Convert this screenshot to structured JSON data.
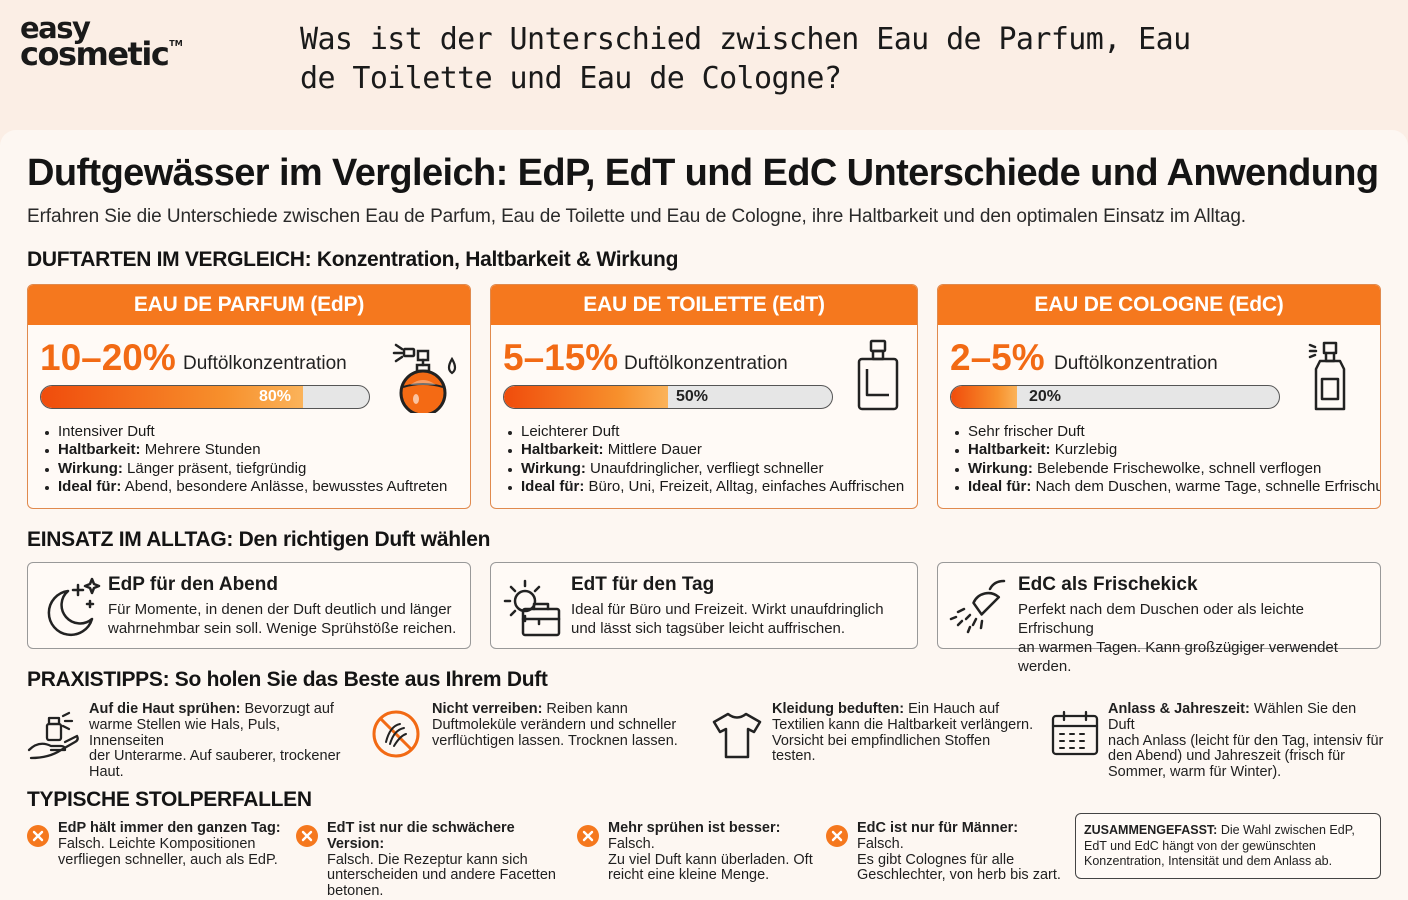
{
  "logo": {
    "line1": "easy",
    "line2": "cosmetic",
    "tm": "TM"
  },
  "question": "Was ist der Unterschied zwischen Eau de Parfum, Eau de Toilette und Eau de Cologne?",
  "title": "Duftgewässer im Vergleich: EdP, EdT und EdC Unterschiede und Anwendung",
  "subtitle": "Erfahren Sie die Unterschiede zwischen Eau de Parfum, Eau de Toilette und Eau de Cologne, ihre Haltbarkeit und den optimalen Einsatz im Alltag.",
  "section1": "DUFTARTEN IM VERGLEICH: Konzentration, Haltbarkeit & Wirkung",
  "section2": "EINSATZ IM ALLTAG: Den richtigen Duft wählen",
  "section3": "PRAXISTIPPS: So holen Sie das Beste aus Ihrem Duft",
  "section4": "TYPISCHE STOLPERFALLEN",
  "types": [
    {
      "title": "EAU DE PARFUM (EdP)",
      "pct": "10–20%",
      "pct_label": "Duftölkonzentration",
      "bar_value": 80,
      "bar_label": "80%",
      "b1": "Intensiver Duft",
      "b2k": "Haltbarkeit:",
      "b2v": " Mehrere Stunden",
      "b3k": "Wirkung:",
      "b3v": " Länger präsent, tiefgründig",
      "b4k": "Ideal für:",
      "b4v": " Abend, besondere Anlässe, bewusstes Auftreten",
      "icon": "perfume-bottle-icon"
    },
    {
      "title": "EAU DE TOILETTE (EdT)",
      "pct": "5–15%",
      "pct_label": "Duftölkonzentration",
      "bar_value": 50,
      "bar_label": "50%",
      "b1": "Leichterer Duft",
      "b2k": "Haltbarkeit:",
      "b2v": " Mittlere Dauer",
      "b3k": "Wirkung:",
      "b3v": " Unaufdringlicher, verfliegt schneller",
      "b4k": "Ideal für:",
      "b4v": " Büro, Uni, Freizeit, Alltag, einfaches Auffrischen",
      "icon": "toilette-bottle-icon"
    },
    {
      "title": "EAU DE COLOGNE (EdC)",
      "pct": "2–5%",
      "pct_label": "Duftölkonzentration",
      "bar_value": 20,
      "bar_label": "20%",
      "b1": "Sehr frischer Duft",
      "b2k": "Haltbarkeit:",
      "b2v": " Kurzlebig",
      "b3k": "Wirkung:",
      "b3v": " Belebende Frischewolke, schnell verflogen",
      "b4k": "Ideal für:",
      "b4v": " Nach dem Duschen, warme Tage, schnelle Erfrischung",
      "icon": "cologne-spray-icon"
    }
  ],
  "usage": [
    {
      "title": "EdP für den Abend",
      "line1": "Für Momente, in denen der Duft deutlich und länger",
      "line2": "wahrnehmbar sein soll. Wenige Sprühstöße reichen.",
      "icon": "moon-stars-icon"
    },
    {
      "title": "EdT für den Tag",
      "line1": "Ideal für Büro und Freizeit. Wirkt unaufdringlich",
      "line2": "und lässt sich tagsüber leicht auffrischen.",
      "icon": "sun-briefcase-icon"
    },
    {
      "title": "EdC als Frischekick",
      "line1": "Perfekt nach dem Duschen oder als leichte Erfrischung",
      "line2": "an warmen Tagen. Kann großzügiger verwendet werden.",
      "icon": "shower-icon"
    }
  ],
  "tips": [
    {
      "bold": "Auf die Haut sprühen:",
      "l1": " Bevorzugt auf",
      "l2": "warme Stellen wie Hals, Puls, Innenseiten",
      "l3": "der Unterarme. Auf sauberer, trockener",
      "l4": "Haut.",
      "icon": "spray-hand-icon"
    },
    {
      "bold": "Nicht verreiben:",
      "l1": " Reiben kann",
      "l2": "Duftmoleküle verändern und schneller",
      "l3": "verflüchtigen lassen. Trocknen lassen.",
      "l4": "",
      "icon": "no-rubbing-icon"
    },
    {
      "bold": "Kleidung beduften:",
      "l1": " Ein Hauch auf",
      "l2": "Textilien kann die Haltbarkeit verlängern.",
      "l3": "Vorsicht bei empfindlichen Stoffen",
      "l4": "testen.",
      "icon": "tshirt-icon"
    },
    {
      "bold": "Anlass & Jahreszeit:",
      "l1": " Wählen Sie den Duft",
      "l2": "nach Anlass (leicht für den Tag, intensiv für",
      "l3": "den Abend) und Jahreszeit (frisch für",
      "l4": "Sommer, warm für Winter).",
      "icon": "calendar-icon"
    }
  ],
  "traps": [
    {
      "bold": "EdP hält immer den ganzen Tag:",
      "l1": "Falsch. Leichte Kompositionen",
      "l2": "verfliegen schneller, auch als EdP.",
      "l3": ""
    },
    {
      "bold": "EdT ist nur die schwächere Version:",
      "l1": "Falsch. Die Rezeptur kann sich",
      "l2": "unterscheiden und andere Facetten",
      "l3": "betonen."
    },
    {
      "bold": "Mehr sprühen ist besser:",
      "boldrest": " Falsch.",
      "l1": "Zu viel Duft kann überladen. Oft",
      "l2": "reicht eine kleine Menge.",
      "l3": ""
    },
    {
      "bold": "EdC ist nur für Männer:",
      "boldrest": " Falsch.",
      "l1": "Es gibt Colognes für alle",
      "l2": "Geschlechter, von herb bis zart.",
      "l3": ""
    }
  ],
  "summary": {
    "bold": "ZUSAMMENGEFASST:",
    "text": " Die Wahl zwischen EdP, EdT und EdC hängt von der gewünschten Konzentration, Intensität und dem Anlass ab."
  },
  "colors": {
    "accent": "#f5781e",
    "background": "#fbeee5",
    "card": "#fdf7f2"
  }
}
